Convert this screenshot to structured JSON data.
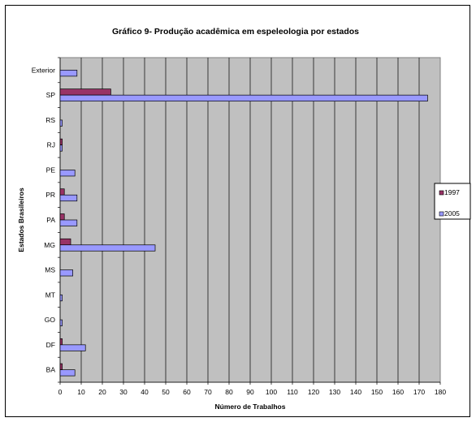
{
  "chart_data": {
    "type": "bar",
    "orientation": "horizontal",
    "title": "Gráfico 9- Produção acadêmica em espeleologia por estados",
    "xlabel": "Número de Trabalhos",
    "ylabel": "Estados Brasileiros",
    "categories": [
      "Exterior",
      "SP",
      "RS",
      "RJ",
      "PE",
      "PR",
      "PA",
      "MG",
      "MS",
      "MT",
      "GO",
      "DF",
      "BA"
    ],
    "series": [
      {
        "name": "1997",
        "values": [
          0,
          24,
          0,
          1,
          0,
          2,
          2,
          5,
          0,
          0,
          0,
          1,
          1
        ]
      },
      {
        "name": "2005",
        "values": [
          8,
          174,
          1,
          1,
          7,
          8,
          8,
          45,
          6,
          1,
          1,
          12,
          7
        ]
      }
    ],
    "xlim": [
      0,
      180
    ],
    "xticks": [
      0,
      10,
      20,
      30,
      40,
      50,
      60,
      70,
      80,
      90,
      100,
      110,
      120,
      130,
      140,
      150,
      160,
      170,
      180
    ],
    "grid": "vertical",
    "legend_position": "right",
    "colors": {
      "plot_background": "#c0c0c0",
      "series_1997": "#993366",
      "series_2005": "#9999ff",
      "gridline": "#000000"
    }
  }
}
